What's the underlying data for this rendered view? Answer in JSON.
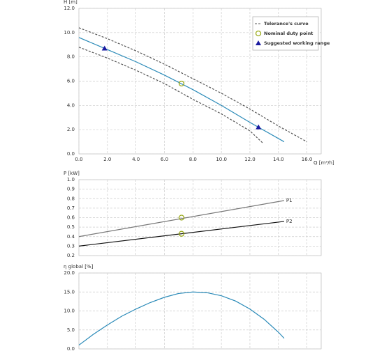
{
  "chart_data": [
    {
      "type": "line",
      "y_label": "H [m]",
      "x_label": "Q [m³/h]",
      "xlim": [
        0,
        17
      ],
      "xticks": [
        {
          "value": 0,
          "label": "0.0"
        },
        {
          "value": 2,
          "label": "2.0"
        },
        {
          "value": 4,
          "label": "4.0"
        },
        {
          "value": 6,
          "label": "6.0"
        },
        {
          "value": 8,
          "label": "8.0"
        },
        {
          "value": 10,
          "label": "10.0"
        },
        {
          "value": 12,
          "label": "12.0"
        },
        {
          "value": 14,
          "label": "14.0"
        },
        {
          "value": 16,
          "label": "16.0"
        }
      ],
      "ylim": [
        0,
        12
      ],
      "yticks": [
        {
          "value": 0,
          "label": "0.0"
        },
        {
          "value": 2,
          "label": "2.0"
        },
        {
          "value": 4,
          "label": "4.0"
        },
        {
          "value": 6,
          "label": "6.0"
        },
        {
          "value": 8,
          "label": "8.0"
        },
        {
          "value": 10,
          "label": "10.0"
        },
        {
          "value": 12,
          "label": "12.0"
        }
      ],
      "grid": true,
      "legend": "top-right",
      "series": [
        {
          "name": "Tolerance's curve",
          "color": "#555555",
          "style": "dashed",
          "x": [
            0,
            2,
            4,
            6,
            8,
            10,
            12,
            14,
            16
          ],
          "values": [
            10.4,
            9.5,
            8.5,
            7.4,
            6.2,
            5.0,
            3.7,
            2.3,
            1.0
          ]
        },
        {
          "color": "#555555",
          "style": "dashed",
          "x": [
            0,
            2,
            4,
            6,
            8,
            10,
            12,
            12.9
          ],
          "values": [
            8.8,
            7.9,
            6.9,
            5.8,
            4.5,
            3.3,
            1.9,
            0.9
          ]
        },
        {
          "color": "#2a8ab8",
          "style": "solid",
          "x": [
            0,
            2,
            4,
            6,
            8,
            10,
            12,
            14.4
          ],
          "values": [
            9.6,
            8.6,
            7.6,
            6.5,
            5.3,
            4.0,
            2.6,
            1.0
          ]
        },
        {
          "name": "Nominal duty point",
          "color": "#9aaa1a",
          "marker": "circle",
          "x": [
            7.2
          ],
          "values": [
            5.8
          ]
        },
        {
          "name": "Suggested working range",
          "color": "#1a1aa0",
          "marker": "triangle",
          "x": [
            1.8,
            12.6
          ],
          "values": [
            8.7,
            2.2
          ]
        }
      ]
    },
    {
      "type": "line",
      "y_label": "P [kW]",
      "xlim": [
        0,
        17
      ],
      "xticks": [
        0,
        2,
        4,
        6,
        8,
        10,
        12,
        14,
        16
      ],
      "xtick_labels": false,
      "ylim": [
        0.2,
        1.0
      ],
      "yticks": [
        0.2,
        0.3,
        0.4,
        0.5,
        0.6,
        0.7,
        0.8,
        0.9,
        {
          "value": 1.0,
          "label": "1.0"
        }
      ],
      "grid": true,
      "series_labels": "line-end",
      "series": [
        {
          "name": "P1",
          "color": "#777777",
          "style": "solid",
          "x": [
            0,
            14.4
          ],
          "values": [
            0.4,
            0.78
          ]
        },
        {
          "name": "P2",
          "color": "#111111",
          "style": "solid",
          "x": [
            0,
            14.4
          ],
          "values": [
            0.3,
            0.56
          ]
        },
        {
          "color": "#9aaa1a",
          "marker": "circle",
          "x": [
            7.2,
            7.2
          ],
          "values": [
            0.6,
            0.43
          ]
        }
      ]
    },
    {
      "type": "line",
      "y_label": "η global [%]",
      "xlim": [
        0,
        17
      ],
      "xticks": [
        0,
        2,
        4,
        6,
        8,
        10,
        12,
        14,
        16
      ],
      "xtick_labels": false,
      "ylim": [
        0,
        20
      ],
      "yticks": [
        {
          "value": 0,
          "label": "0.0"
        },
        {
          "value": 5,
          "label": "5.0"
        },
        {
          "value": 10,
          "label": "10.0"
        },
        {
          "value": 15,
          "label": "15.0"
        },
        {
          "value": 20,
          "label": "20.0"
        }
      ],
      "grid": true,
      "series": [
        {
          "color": "#2a8ab8",
          "style": "solid",
          "x": [
            0,
            1,
            2,
            3,
            4,
            5,
            6,
            7,
            8,
            9,
            10,
            11,
            12,
            13,
            14,
            14.4
          ],
          "values": [
            1.0,
            3.8,
            6.3,
            8.6,
            10.5,
            12.2,
            13.6,
            14.6,
            15.0,
            14.8,
            14.0,
            12.6,
            10.5,
            7.8,
            4.4,
            2.8
          ]
        }
      ]
    }
  ]
}
